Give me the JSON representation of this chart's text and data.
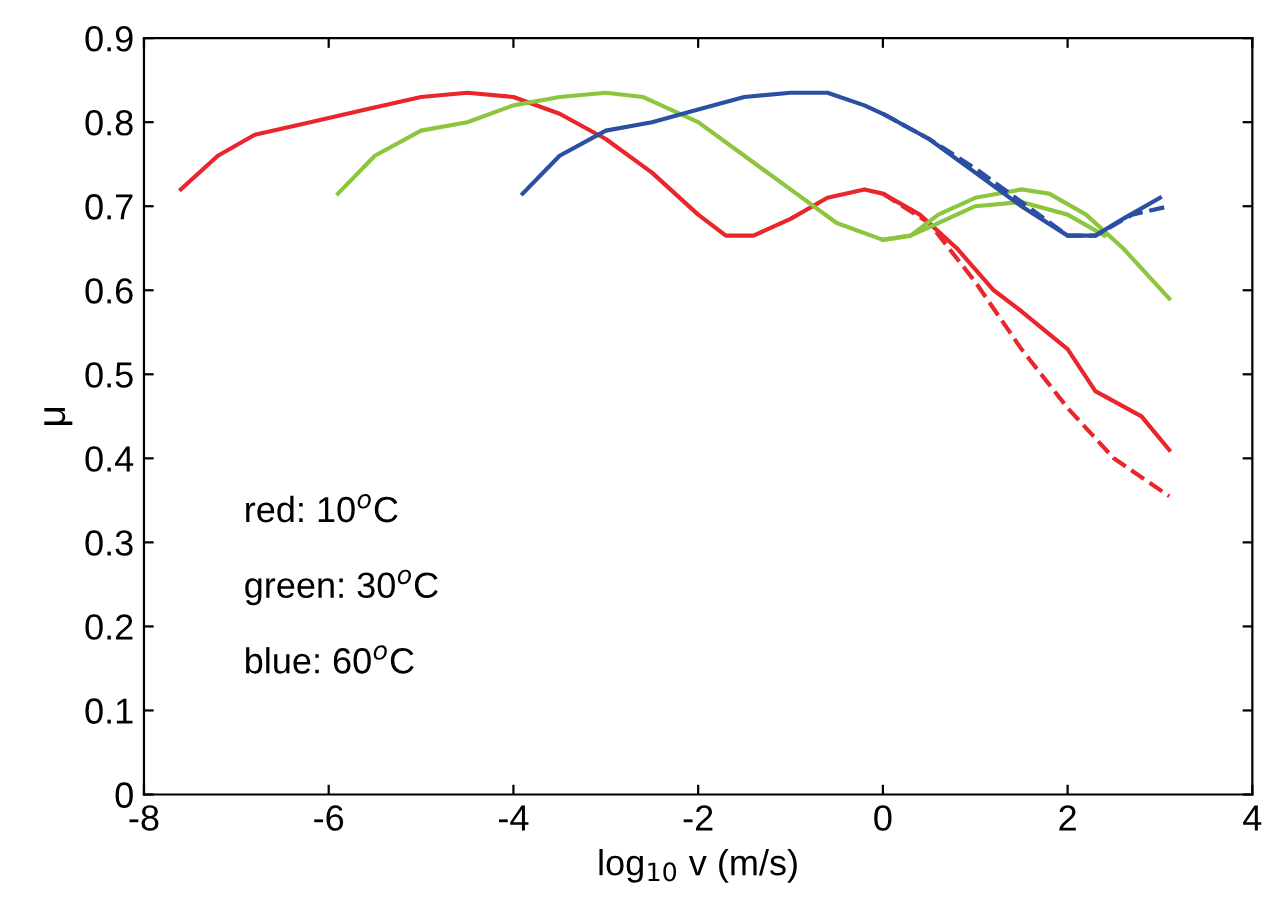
{
  "chart_data": {
    "type": "line",
    "xlabel": "log$_{10}$ v (m/s)",
    "ylabel": "μ",
    "xlim": [
      -8,
      4
    ],
    "ylim": [
      0,
      0.9
    ],
    "xticks": [
      -8,
      -6,
      -4,
      -2,
      0,
      2,
      4
    ],
    "yticks": [
      0,
      0.1,
      0.2,
      0.3,
      0.4,
      0.5,
      0.6,
      0.7,
      0.8,
      0.9
    ],
    "grid": false,
    "legend": false,
    "marker": "none",
    "annotations": [
      "red: 10$^{o}$C",
      "green: 30$^{o}$C",
      "blue: 60$^{o}$C"
    ],
    "series": [
      {
        "color": "#e8262b",
        "line_style": "solid",
        "x": [
          -7.6,
          -7.2,
          -6.8,
          -6.2,
          -5.6,
          -5,
          -4.5,
          -4,
          -3.5,
          -3,
          -2.5,
          -2,
          -1.7,
          -1.4,
          -1,
          -0.6,
          -0.2,
          0,
          0.4,
          0.8,
          1.2,
          1.5,
          2,
          2.3,
          2.8,
          3.1
        ],
        "values": [
          0.72,
          0.76,
          0.785,
          0.8,
          0.815,
          0.83,
          0.835,
          0.83,
          0.81,
          0.78,
          0.74,
          0.69,
          0.665,
          0.665,
          0.685,
          0.71,
          0.72,
          0.715,
          0.69,
          0.65,
          0.6,
          0.575,
          0.53,
          0.48,
          0.45,
          0.41
        ]
      },
      {
        "color": "#e8262b",
        "line_style": "dashed",
        "x": [
          0,
          0.5,
          1,
          1.5,
          2,
          2.5,
          3.1
        ],
        "values": [
          0.715,
          0.68,
          0.61,
          0.53,
          0.46,
          0.4,
          0.355
        ]
      },
      {
        "color": "#8cc63e",
        "line_style": "solid",
        "x": [
          -5.9,
          -5.5,
          -5,
          -4.5,
          -4,
          -3.5,
          -3,
          -2.6,
          -2,
          -1.5,
          -1,
          -0.5,
          0,
          0.3,
          0.6,
          1,
          1.5,
          1.8,
          2.2,
          2.6,
          3.1
        ],
        "values": [
          0.715,
          0.76,
          0.79,
          0.8,
          0.82,
          0.83,
          0.835,
          0.83,
          0.8,
          0.76,
          0.72,
          0.68,
          0.66,
          0.665,
          0.69,
          0.71,
          0.72,
          0.715,
          0.69,
          0.65,
          0.59
        ]
      },
      {
        "color": "#8cc63e",
        "line_style": "solid",
        "x": [
          0,
          0.3,
          0.6,
          1,
          1.5,
          2,
          2.4
        ],
        "values": [
          0.66,
          0.665,
          0.68,
          0.7,
          0.705,
          0.69,
          0.665
        ]
      },
      {
        "color": "#2b4fa2",
        "line_style": "solid",
        "x": [
          -3.9,
          -3.5,
          -3,
          -2.5,
          -2,
          -1.5,
          -1,
          -0.6,
          -0.2,
          0,
          0.5,
          1,
          1.5,
          2,
          2.3,
          2.6,
          3
        ],
        "values": [
          0.715,
          0.76,
          0.79,
          0.8,
          0.815,
          0.83,
          0.835,
          0.835,
          0.82,
          0.81,
          0.78,
          0.74,
          0.7,
          0.665,
          0.665,
          0.685,
          0.71
        ]
      },
      {
        "color": "#2b4fa2",
        "line_style": "dashed",
        "x": [
          0,
          0.5,
          1,
          1.5,
          2,
          2.3,
          2.7,
          3.1
        ],
        "values": [
          0.81,
          0.78,
          0.745,
          0.705,
          0.665,
          0.665,
          0.69,
          0.7
        ]
      }
    ]
  }
}
